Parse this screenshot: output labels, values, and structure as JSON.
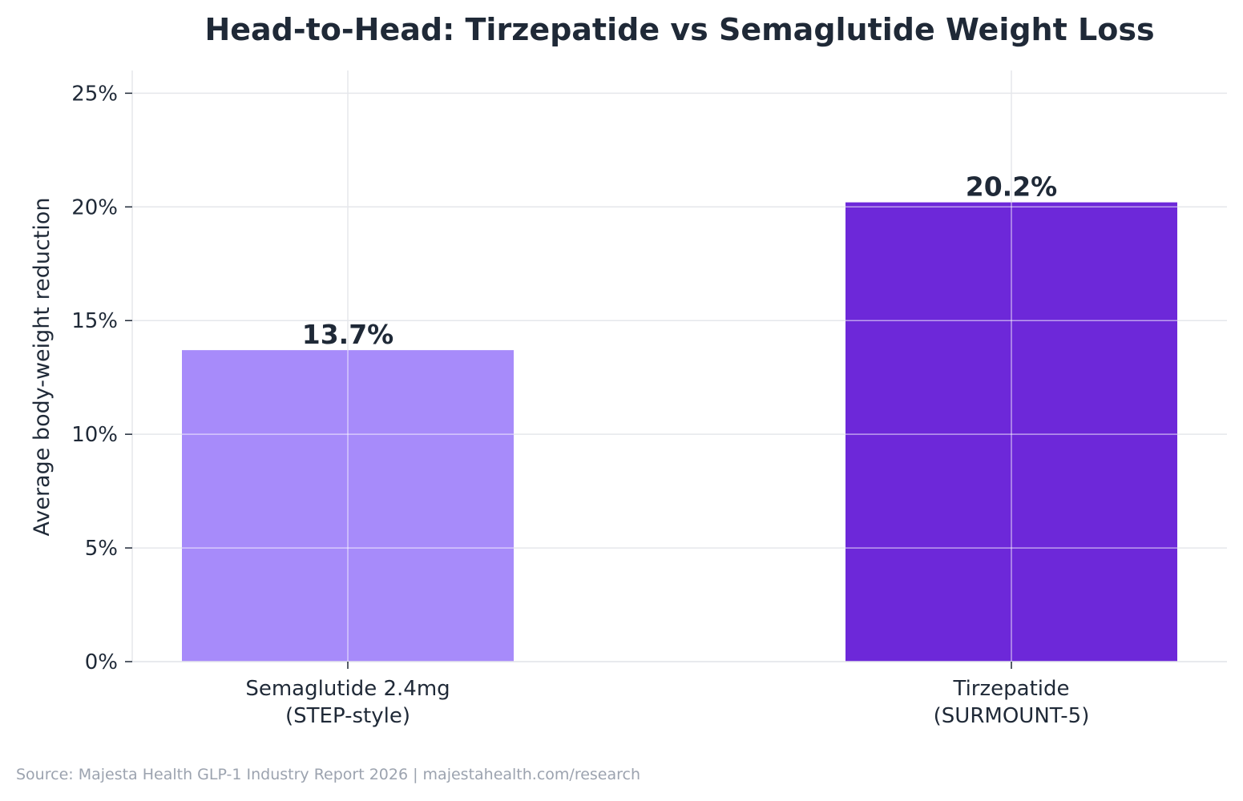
{
  "chart_data": {
    "type": "bar",
    "title": "Head-to-Head: Tirzepatide vs Semaglutide Weight Loss",
    "xlabel": "",
    "ylabel": "Average body-weight reduction",
    "categories": [
      [
        "Semaglutide 2.4mg",
        "(STEP-style)"
      ],
      [
        "Tirzepatide",
        "(SURMOUNT-5)"
      ]
    ],
    "values": [
      13.7,
      20.2
    ],
    "data_labels": [
      "13.7%",
      "20.2%"
    ],
    "bar_colors": [
      "#a78bfa",
      "#6d28d9"
    ],
    "ylim": [
      0,
      26
    ],
    "yticks": [
      0,
      5,
      10,
      15,
      20,
      25
    ],
    "ytick_labels": [
      "0%",
      "5%",
      "10%",
      "15%",
      "20%",
      "25%"
    ],
    "grid": true,
    "legend": "none"
  },
  "footer": {
    "source": "Source: Majesta Health GLP-1 Industry Report 2026  |  majestahealth.com/research"
  }
}
